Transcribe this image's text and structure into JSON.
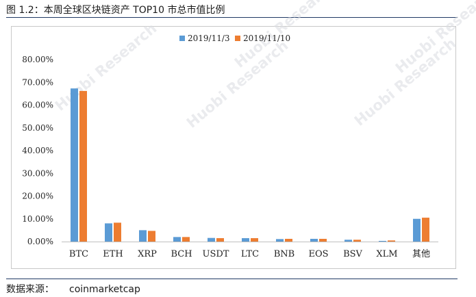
{
  "figure": {
    "title": "图 1.2：本周全球区块链资产 TOP10 市总市值比例",
    "source_label": "数据来源：",
    "source_value": "coinmarketcap",
    "watermark": "Huobi Research"
  },
  "chart_data": {
    "type": "bar",
    "categories": [
      "BTC",
      "ETH",
      "XRP",
      "BCH",
      "USDT",
      "LTC",
      "BNB",
      "EOS",
      "BSV",
      "XLM",
      "其他"
    ],
    "series": [
      {
        "name": "2019/11/3",
        "color": "#5b9bd5",
        "values": [
          67.3,
          8.0,
          5.0,
          2.0,
          1.6,
          1.5,
          1.1,
          1.2,
          0.8,
          0.3,
          10.0
        ]
      },
      {
        "name": "2019/11/10",
        "color": "#ed7d31",
        "values": [
          66.2,
          8.3,
          4.7,
          2.0,
          1.5,
          1.5,
          1.2,
          1.2,
          0.8,
          0.5,
          10.5
        ]
      }
    ],
    "yticks": [
      "0.00%",
      "10.00%",
      "20.00%",
      "30.00%",
      "40.00%",
      "50.00%",
      "60.00%",
      "70.00%",
      "80.00%"
    ],
    "ylim": [
      0,
      80
    ],
    "legend_position": "top",
    "grid": false
  }
}
